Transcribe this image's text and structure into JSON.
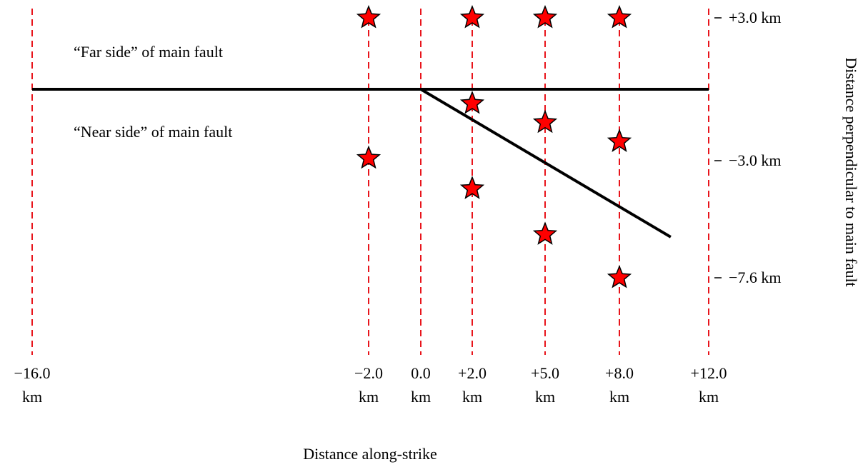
{
  "diagram": {
    "x_axis_title": "Distance along-strike",
    "y_axis_title": "Distance perpendicular to main fault",
    "far_side_label": "“Far side” of main fault",
    "near_side_label": "“Near side” of main fault",
    "grid_color": "#e8141b",
    "star_fill": "#ff0000",
    "star_stroke": "#000000",
    "fault_color": "#000000",
    "x_ticks": [
      {
        "value": -16,
        "label_top": "−16.0",
        "label_bottom": "km"
      },
      {
        "value": -2,
        "label_top": "−2.0",
        "label_bottom": "km"
      },
      {
        "value": 0,
        "label_top": "0.0",
        "label_bottom": "km"
      },
      {
        "value": 2,
        "label_top": "+2.0",
        "label_bottom": "km"
      },
      {
        "value": 5,
        "label_top": "+5.0",
        "label_bottom": "km"
      },
      {
        "value": 8,
        "label_top": "+8.0",
        "label_bottom": "km"
      },
      {
        "value": 12,
        "label_top": "+12.0",
        "label_bottom": "km"
      }
    ],
    "y_ticks": [
      {
        "value": 3.0,
        "label": "+3.0 km"
      },
      {
        "value": -3.0,
        "label": "−3.0 km"
      },
      {
        "value": -7.6,
        "label": "−7.6 km"
      }
    ],
    "main_fault": {
      "from": -16,
      "to": 12,
      "y": 0
    },
    "branch_fault": {
      "from": [
        0,
        0
      ],
      "to": [
        10.3,
        -6.0
      ]
    },
    "stars": [
      {
        "x": -2,
        "y": 3.0
      },
      {
        "x": 2,
        "y": 3.0
      },
      {
        "x": 5,
        "y": 3.0
      },
      {
        "x": 8,
        "y": 3.0
      },
      {
        "x": 2,
        "y": -0.6
      },
      {
        "x": 5,
        "y": -1.4
      },
      {
        "x": 8,
        "y": -2.2
      },
      {
        "x": -2,
        "y": -2.9
      },
      {
        "x": 2,
        "y": -4.1
      },
      {
        "x": 5,
        "y": -5.9
      },
      {
        "x": 8,
        "y": -7.6
      }
    ]
  }
}
